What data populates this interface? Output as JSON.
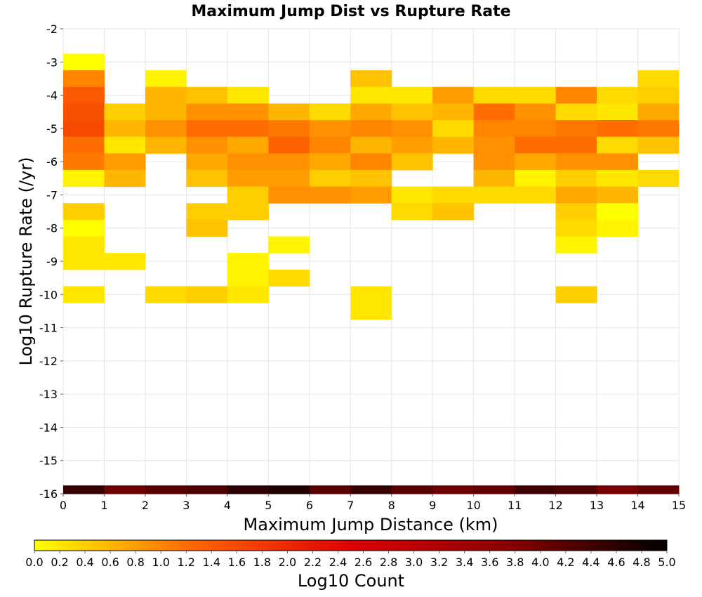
{
  "chart_data": {
    "type": "heatmap",
    "title": "Maximum Jump Dist vs Rupture Rate",
    "xlabel": "Maximum Jump Distance (km)",
    "ylabel": "Log10 Rupture Rate (/yr)",
    "xlim": [
      0,
      15
    ],
    "ylim": [
      -16,
      -2
    ],
    "xticks": [
      "0",
      "1",
      "2",
      "3",
      "4",
      "5",
      "6",
      "7",
      "8",
      "9",
      "10",
      "11",
      "12",
      "13",
      "14",
      "15"
    ],
    "yticks": [
      "-2",
      "-3",
      "-4",
      "-5",
      "-6",
      "-7",
      "-8",
      "-9",
      "-10",
      "-11",
      "-12",
      "-13",
      "-14",
      "-15",
      "-16"
    ],
    "x_bin_width": 1,
    "y_bin_height": 0.5,
    "colorbar": {
      "label": "Log10 Count",
      "range": [
        0,
        5
      ],
      "ticks": [
        "0.0",
        "0.2",
        "0.4",
        "0.6",
        "0.8",
        "1.0",
        "1.2",
        "1.4",
        "1.6",
        "1.8",
        "2.0",
        "2.2",
        "2.4",
        "2.6",
        "2.8",
        "3.0",
        "3.2",
        "3.4",
        "3.6",
        "3.8",
        "4.0",
        "4.2",
        "4.4",
        "4.6",
        "4.8",
        "5.0"
      ],
      "colors": [
        "#ffff00",
        "#ff6600",
        "#dd0000",
        "#880000",
        "#000000"
      ]
    },
    "cells": [
      [
        0,
        -3.0,
        0.0
      ],
      [
        0,
        -3.5,
        1.0
      ],
      [
        0,
        -4.0,
        1.4
      ],
      [
        0,
        -4.5,
        1.5
      ],
      [
        0,
        -5.0,
        1.6
      ],
      [
        0,
        -5.5,
        1.2
      ],
      [
        0,
        -6.0,
        1.1
      ],
      [
        0,
        -6.5,
        0.1
      ],
      [
        0,
        -7.5,
        0.4
      ],
      [
        0,
        -8.0,
        0.0
      ],
      [
        0,
        -8.5,
        0.2
      ],
      [
        0,
        -9.0,
        0.2
      ],
      [
        0,
        -10.0,
        0.2
      ],
      [
        0,
        -16.0,
        4.5
      ],
      [
        1,
        -4.5,
        0.4
      ],
      [
        1,
        -5.0,
        0.6
      ],
      [
        1,
        -5.5,
        0.2
      ],
      [
        1,
        -6.0,
        0.8
      ],
      [
        1,
        -6.5,
        0.6
      ],
      [
        1,
        -9.0,
        0.2
      ],
      [
        1,
        -16.0,
        4.0
      ],
      [
        2,
        -3.5,
        0.1
      ],
      [
        2,
        -4.0,
        0.6
      ],
      [
        2,
        -4.5,
        0.6
      ],
      [
        2,
        -5.0,
        0.9
      ],
      [
        2,
        -5.5,
        0.6
      ],
      [
        2,
        -10.0,
        0.3
      ],
      [
        2,
        -16.0,
        4.2
      ],
      [
        3,
        -4.0,
        0.5
      ],
      [
        3,
        -4.5,
        0.9
      ],
      [
        3,
        -5.0,
        1.2
      ],
      [
        3,
        -5.5,
        0.9
      ],
      [
        3,
        -6.0,
        0.7
      ],
      [
        3,
        -6.5,
        0.5
      ],
      [
        3,
        -7.5,
        0.4
      ],
      [
        3,
        -8.0,
        0.5
      ],
      [
        3,
        -10.0,
        0.4
      ],
      [
        3,
        -16.0,
        4.3
      ],
      [
        4,
        -4.0,
        0.2
      ],
      [
        4,
        -4.5,
        0.9
      ],
      [
        4,
        -5.0,
        1.2
      ],
      [
        4,
        -5.5,
        0.7
      ],
      [
        4,
        -6.0,
        0.9
      ],
      [
        4,
        -6.5,
        0.8
      ],
      [
        4,
        -7.0,
        0.4
      ],
      [
        4,
        -7.5,
        0.4
      ],
      [
        4,
        -9.0,
        0.1
      ],
      [
        4,
        -9.5,
        0.1
      ],
      [
        4,
        -10.0,
        0.2
      ],
      [
        4,
        -16.0,
        4.6
      ],
      [
        5,
        -4.5,
        0.6
      ],
      [
        5,
        -5.0,
        1.1
      ],
      [
        5,
        -5.5,
        1.3
      ],
      [
        5,
        -6.0,
        0.9
      ],
      [
        5,
        -6.5,
        0.8
      ],
      [
        5,
        -7.0,
        0.9
      ],
      [
        5,
        -8.5,
        0.1
      ],
      [
        5,
        -9.5,
        0.3
      ],
      [
        5,
        -16.0,
        4.7
      ],
      [
        6,
        -4.5,
        0.3
      ],
      [
        6,
        -5.0,
        0.9
      ],
      [
        6,
        -5.5,
        1.0
      ],
      [
        6,
        -6.0,
        0.7
      ],
      [
        6,
        -6.5,
        0.4
      ],
      [
        6,
        -7.0,
        0.9
      ],
      [
        6,
        -16.0,
        4.2
      ],
      [
        7,
        -3.5,
        0.5
      ],
      [
        7,
        -4.0,
        0.2
      ],
      [
        7,
        -4.5,
        0.7
      ],
      [
        7,
        -5.0,
        1.0
      ],
      [
        7,
        -5.5,
        0.6
      ],
      [
        7,
        -6.0,
        1.0
      ],
      [
        7,
        -6.5,
        0.5
      ],
      [
        7,
        -7.0,
        0.8
      ],
      [
        7,
        -10.0,
        0.2
      ],
      [
        7,
        -10.5,
        0.2
      ],
      [
        7,
        -16.0,
        4.5
      ],
      [
        8,
        -4.0,
        0.2
      ],
      [
        8,
        -4.5,
        0.5
      ],
      [
        8,
        -5.0,
        0.9
      ],
      [
        8,
        -5.5,
        0.8
      ],
      [
        8,
        -6.0,
        0.5
      ],
      [
        8,
        -7.0,
        0.2
      ],
      [
        8,
        -7.5,
        0.3
      ],
      [
        8,
        -16.0,
        4.2
      ],
      [
        9,
        -4.0,
        0.8
      ],
      [
        9,
        -4.5,
        0.6
      ],
      [
        9,
        -5.0,
        0.3
      ],
      [
        9,
        -5.5,
        0.6
      ],
      [
        9,
        -7.0,
        0.3
      ],
      [
        9,
        -7.5,
        0.5
      ],
      [
        9,
        -16.0,
        4.0
      ],
      [
        10,
        -4.0,
        0.3
      ],
      [
        10,
        -4.5,
        1.2
      ],
      [
        10,
        -5.0,
        1.0
      ],
      [
        10,
        -5.5,
        0.9
      ],
      [
        10,
        -6.0,
        0.9
      ],
      [
        10,
        -6.5,
        0.6
      ],
      [
        10,
        -7.0,
        0.3
      ],
      [
        10,
        -16.0,
        4.1
      ],
      [
        11,
        -4.0,
        0.3
      ],
      [
        11,
        -4.5,
        0.9
      ],
      [
        11,
        -5.0,
        1.0
      ],
      [
        11,
        -5.5,
        1.2
      ],
      [
        11,
        -6.0,
        0.7
      ],
      [
        11,
        -6.5,
        0.1
      ],
      [
        11,
        -7.0,
        0.3
      ],
      [
        11,
        -16.0,
        4.4
      ],
      [
        12,
        -4.0,
        1.0
      ],
      [
        12,
        -4.5,
        0.3
      ],
      [
        12,
        -5.0,
        1.1
      ],
      [
        12,
        -5.5,
        1.2
      ],
      [
        12,
        -6.0,
        0.9
      ],
      [
        12,
        -6.5,
        0.4
      ],
      [
        12,
        -7.0,
        0.7
      ],
      [
        12,
        -7.5,
        0.4
      ],
      [
        12,
        -8.0,
        0.3
      ],
      [
        12,
        -8.5,
        0.1
      ],
      [
        12,
        -10.0,
        0.4
      ],
      [
        12,
        -16.0,
        4.3
      ],
      [
        13,
        -4.0,
        0.3
      ],
      [
        13,
        -4.5,
        0.2
      ],
      [
        13,
        -5.0,
        1.2
      ],
      [
        13,
        -5.5,
        0.3
      ],
      [
        13,
        -6.0,
        0.9
      ],
      [
        13,
        -6.5,
        0.2
      ],
      [
        13,
        -7.0,
        0.6
      ],
      [
        13,
        -7.5,
        0.0
      ],
      [
        13,
        -8.0,
        0.1
      ],
      [
        13,
        -16.0,
        3.9
      ],
      [
        14,
        -3.5,
        0.3
      ],
      [
        14,
        -4.0,
        0.4
      ],
      [
        14,
        -4.5,
        0.7
      ],
      [
        14,
        -5.0,
        1.1
      ],
      [
        14,
        -5.5,
        0.5
      ],
      [
        14,
        -6.5,
        0.3
      ],
      [
        14,
        -16.0,
        4.1
      ]
    ]
  }
}
